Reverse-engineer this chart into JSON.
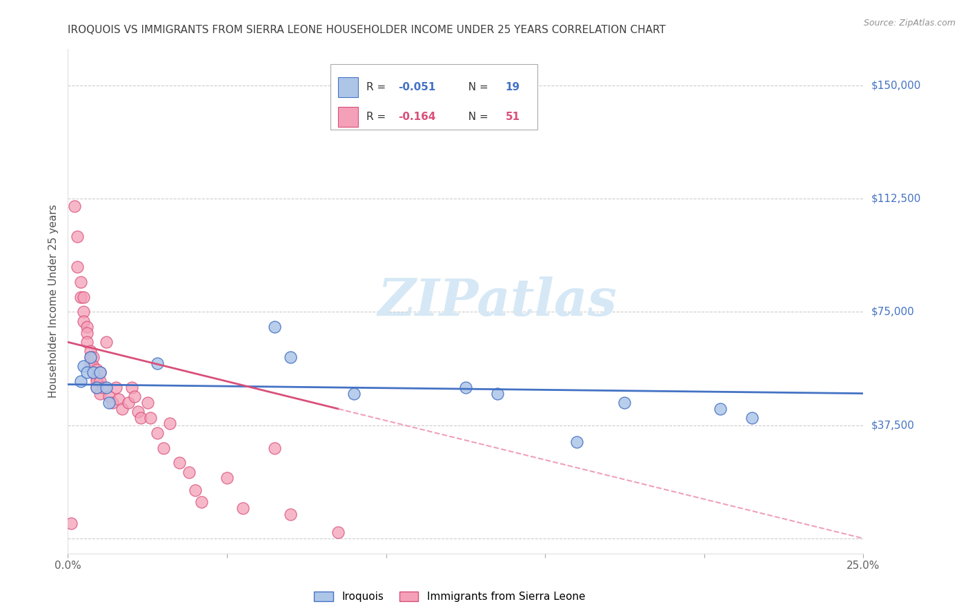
{
  "title": "IROQUOIS VS IMMIGRANTS FROM SIERRA LEONE HOUSEHOLDER INCOME UNDER 25 YEARS CORRELATION CHART",
  "source": "Source: ZipAtlas.com",
  "ylabel": "Householder Income Under 25 years",
  "legend_label_blue": "Iroquois",
  "legend_label_pink": "Immigrants from Sierra Leone",
  "legend_R_blue": "-0.051",
  "legend_N_blue": "19",
  "legend_R_pink": "-0.164",
  "legend_N_pink": "51",
  "xlim": [
    0,
    0.25
  ],
  "ylim": [
    -5000,
    162000
  ],
  "yticks": [
    0,
    37500,
    75000,
    112500,
    150000
  ],
  "ytick_labels": [
    "",
    "$37,500",
    "$75,000",
    "$112,500",
    "$150,000"
  ],
  "xticks": [
    0.0,
    0.05,
    0.1,
    0.15,
    0.2,
    0.25
  ],
  "xtick_labels": [
    "0.0%",
    "",
    "",
    "",
    "",
    "25.0%"
  ],
  "blue_scatter_x": [
    0.004,
    0.005,
    0.006,
    0.007,
    0.008,
    0.009,
    0.01,
    0.012,
    0.013,
    0.028,
    0.065,
    0.07,
    0.09,
    0.125,
    0.135,
    0.16,
    0.175,
    0.205,
    0.215
  ],
  "blue_scatter_y": [
    52000,
    57000,
    55000,
    60000,
    55000,
    50000,
    55000,
    50000,
    45000,
    58000,
    70000,
    60000,
    48000,
    50000,
    48000,
    32000,
    45000,
    43000,
    40000
  ],
  "pink_scatter_x": [
    0.001,
    0.002,
    0.003,
    0.003,
    0.004,
    0.004,
    0.005,
    0.005,
    0.005,
    0.006,
    0.006,
    0.006,
    0.007,
    0.007,
    0.007,
    0.008,
    0.008,
    0.008,
    0.009,
    0.009,
    0.009,
    0.009,
    0.01,
    0.01,
    0.01,
    0.011,
    0.012,
    0.013,
    0.014,
    0.015,
    0.016,
    0.017,
    0.019,
    0.02,
    0.021,
    0.022,
    0.023,
    0.025,
    0.026,
    0.028,
    0.03,
    0.032,
    0.035,
    0.038,
    0.04,
    0.042,
    0.05,
    0.055,
    0.065,
    0.07,
    0.085
  ],
  "pink_scatter_y": [
    5000,
    110000,
    100000,
    90000,
    85000,
    80000,
    80000,
    75000,
    72000,
    70000,
    68000,
    65000,
    62000,
    60000,
    58000,
    60000,
    57000,
    55000,
    56000,
    53000,
    52000,
    50000,
    55000,
    52000,
    48000,
    50000,
    65000,
    47000,
    45000,
    50000,
    46000,
    43000,
    45000,
    50000,
    47000,
    42000,
    40000,
    45000,
    40000,
    35000,
    30000,
    38000,
    25000,
    22000,
    16000,
    12000,
    20000,
    10000,
    30000,
    8000,
    2000
  ],
  "blue_line_color": "#4472c4",
  "pink_line_color": "#d94f7a",
  "pink_dashed_color": "#f0a0b8",
  "scatter_blue_color": "#adc6e8",
  "scatter_pink_color": "#f4a0b8",
  "background_color": "#ffffff",
  "grid_color": "#cccccc",
  "title_color": "#404040",
  "right_label_color": "#4472c4",
  "watermark_color": "#d6e8f5",
  "watermark_text": "ZIPatlas"
}
